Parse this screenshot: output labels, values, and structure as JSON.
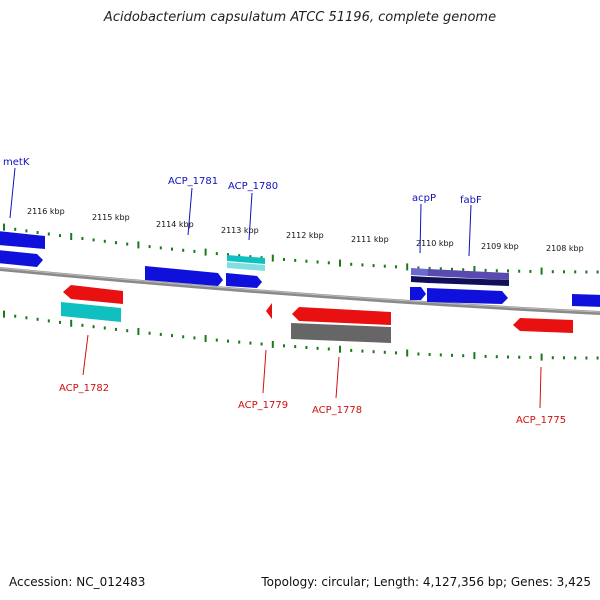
{
  "title": "Acidobacterium capsulatum ATCC 51196, complete genome",
  "footer": {
    "accession": "Accession: NC_012483",
    "summary": "Topology: circular; Length: 4,127,356 bp; Genes: 3,425"
  },
  "colors": {
    "backbone": "#8a8a8a",
    "tick": "#1a7a1a",
    "forward_gene": "#1010dd",
    "reverse_gene": "#e81010",
    "forward_label": "#1010c0",
    "reverse_label": "#d01010",
    "rna_teal": "#10c0c0",
    "pseudo_gray": "#666666",
    "fab_purple": "#5a4ab0",
    "dark_navy": "#10105a"
  },
  "scale_labels": [
    "2116 kbp",
    "2115 kbp",
    "2114 kbp",
    "2113 kbp",
    "2112 kbp",
    "2111 kbp",
    "2110 kbp",
    "2109 kbp",
    "2108 kbp"
  ],
  "forward_labels": [
    "metK",
    "ACP_1781",
    "ACP_1780",
    "acpP",
    "fabF"
  ],
  "reverse_labels": [
    "ACP_1782",
    "ACP_1779",
    "ACP_1778",
    "ACP_1775"
  ]
}
